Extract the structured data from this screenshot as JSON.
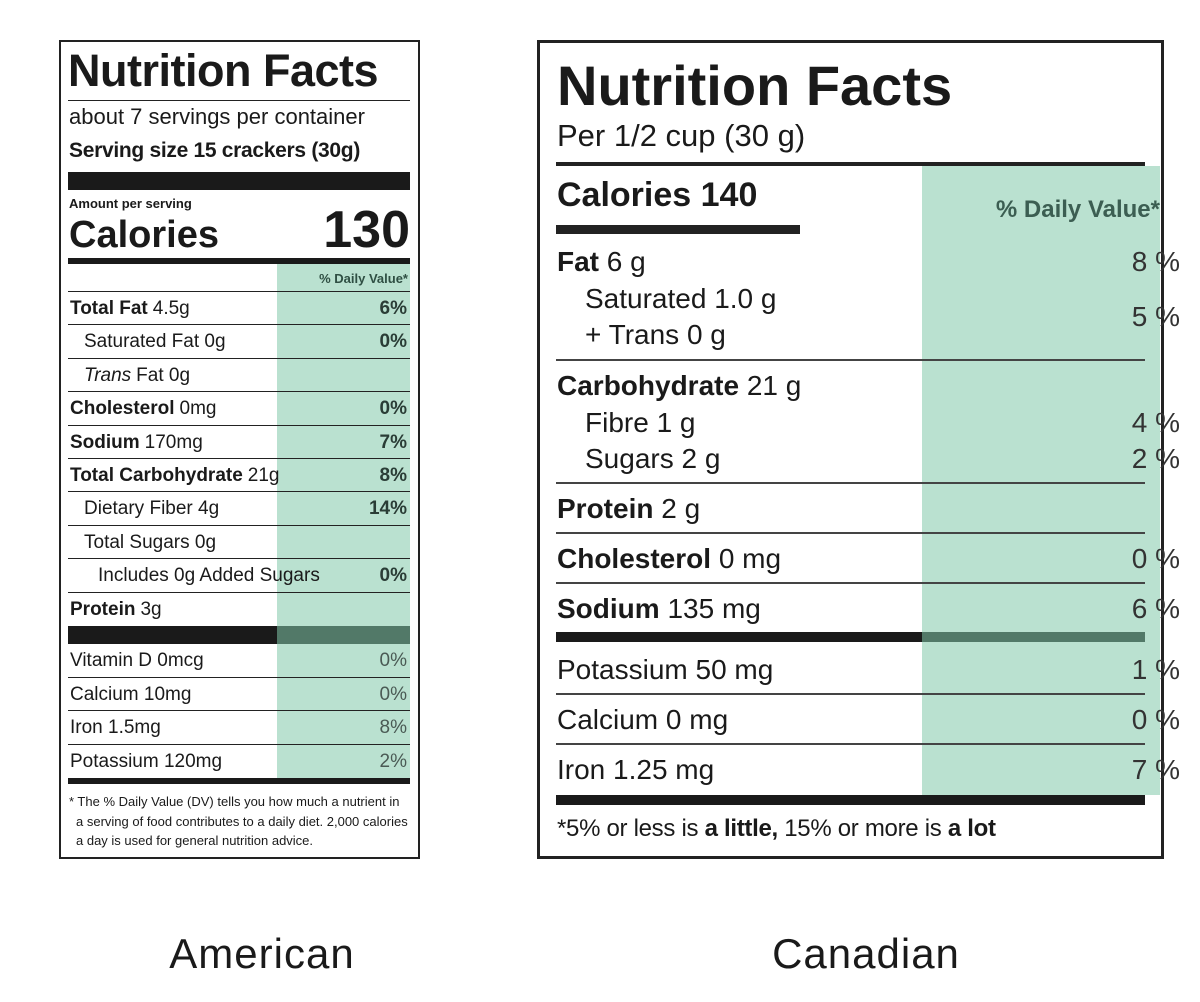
{
  "american": {
    "title": "Nutrition Facts",
    "servings": "about 7 servings per container",
    "serving_size": "Serving size 15 crackers (30g)",
    "amount_per_serving": "Amount per serving",
    "calories_label": "Calories",
    "calories": 130,
    "dv_header": "% Daily Value*",
    "nutrients": [
      {
        "name": "Total Fat",
        "amount": "4.5g",
        "dv": "6%"
      },
      {
        "name": "Saturated Fat 0g",
        "dv": "0%"
      },
      {
        "name": "Trans",
        "amount": "Fat 0g"
      },
      {
        "name": "Cholesterol",
        "amount": "0mg",
        "dv": "0%"
      },
      {
        "name": "Sodium",
        "amount": "170mg",
        "dv": "7%"
      },
      {
        "name": "Total Carbohydrate",
        "amount": "21g",
        "dv": "8%"
      },
      {
        "name": "Dietary Fiber 4g",
        "dv": "14%"
      },
      {
        "name": "Total Sugars 0g"
      },
      {
        "name": "Includes 0g Added Sugars",
        "dv": "0%"
      },
      {
        "name": "Protein",
        "amount": "3g"
      }
    ],
    "micronutrients": [
      {
        "name": "Vitamin D 0mcg",
        "dv": "0%"
      },
      {
        "name": "Calcium 10mg",
        "dv": "0%"
      },
      {
        "name": "Iron 1.5mg",
        "dv": "8%"
      },
      {
        "name": "Potassium 120mg",
        "dv": "2%"
      }
    ],
    "footnote": "* The % Daily Value (DV) tells you how much a nutrient in a serving of food contributes to a daily diet. 2,000 calories a day is used for general nutrition advice.",
    "caption": "American"
  },
  "canadian": {
    "title": "Nutrition Facts",
    "serving": "Per 1/2 cup (30 g)",
    "calories_label": "Calories",
    "calories": 140,
    "dv_header": "% Daily Value*",
    "fat": {
      "name": "Fat",
      "amount": "6 g",
      "dv": "8 %",
      "sub": [
        "Saturated 1.0 g",
        "+ Trans 0 g"
      ],
      "sub_dv": "5 %"
    },
    "carbohydrate": {
      "name": "Carbohydrate",
      "amount": "21 g",
      "sub": [
        {
          "name": "Fibre 1 g",
          "dv": "4 %"
        },
        {
          "name": "Sugars 2 g",
          "dv": "2 %"
        }
      ]
    },
    "protein": {
      "name": "Protein",
      "amount": "2 g"
    },
    "cholesterol": {
      "name": "Cholesterol",
      "amount": "0 mg",
      "dv": "0 %"
    },
    "sodium": {
      "name": "Sodium",
      "amount": "135 mg",
      "dv": "6 %"
    },
    "minerals": [
      {
        "name": "Potassium 50 mg",
        "dv": "1 %"
      },
      {
        "name": "Calcium 0 mg",
        "dv": "0 %"
      },
      {
        "name": "Iron 1.25 mg",
        "dv": "7 %"
      }
    ],
    "footnote": [
      "*5% or less is ",
      "a little,",
      " 15% or more is ",
      "a lot"
    ],
    "caption": "Canadian"
  }
}
